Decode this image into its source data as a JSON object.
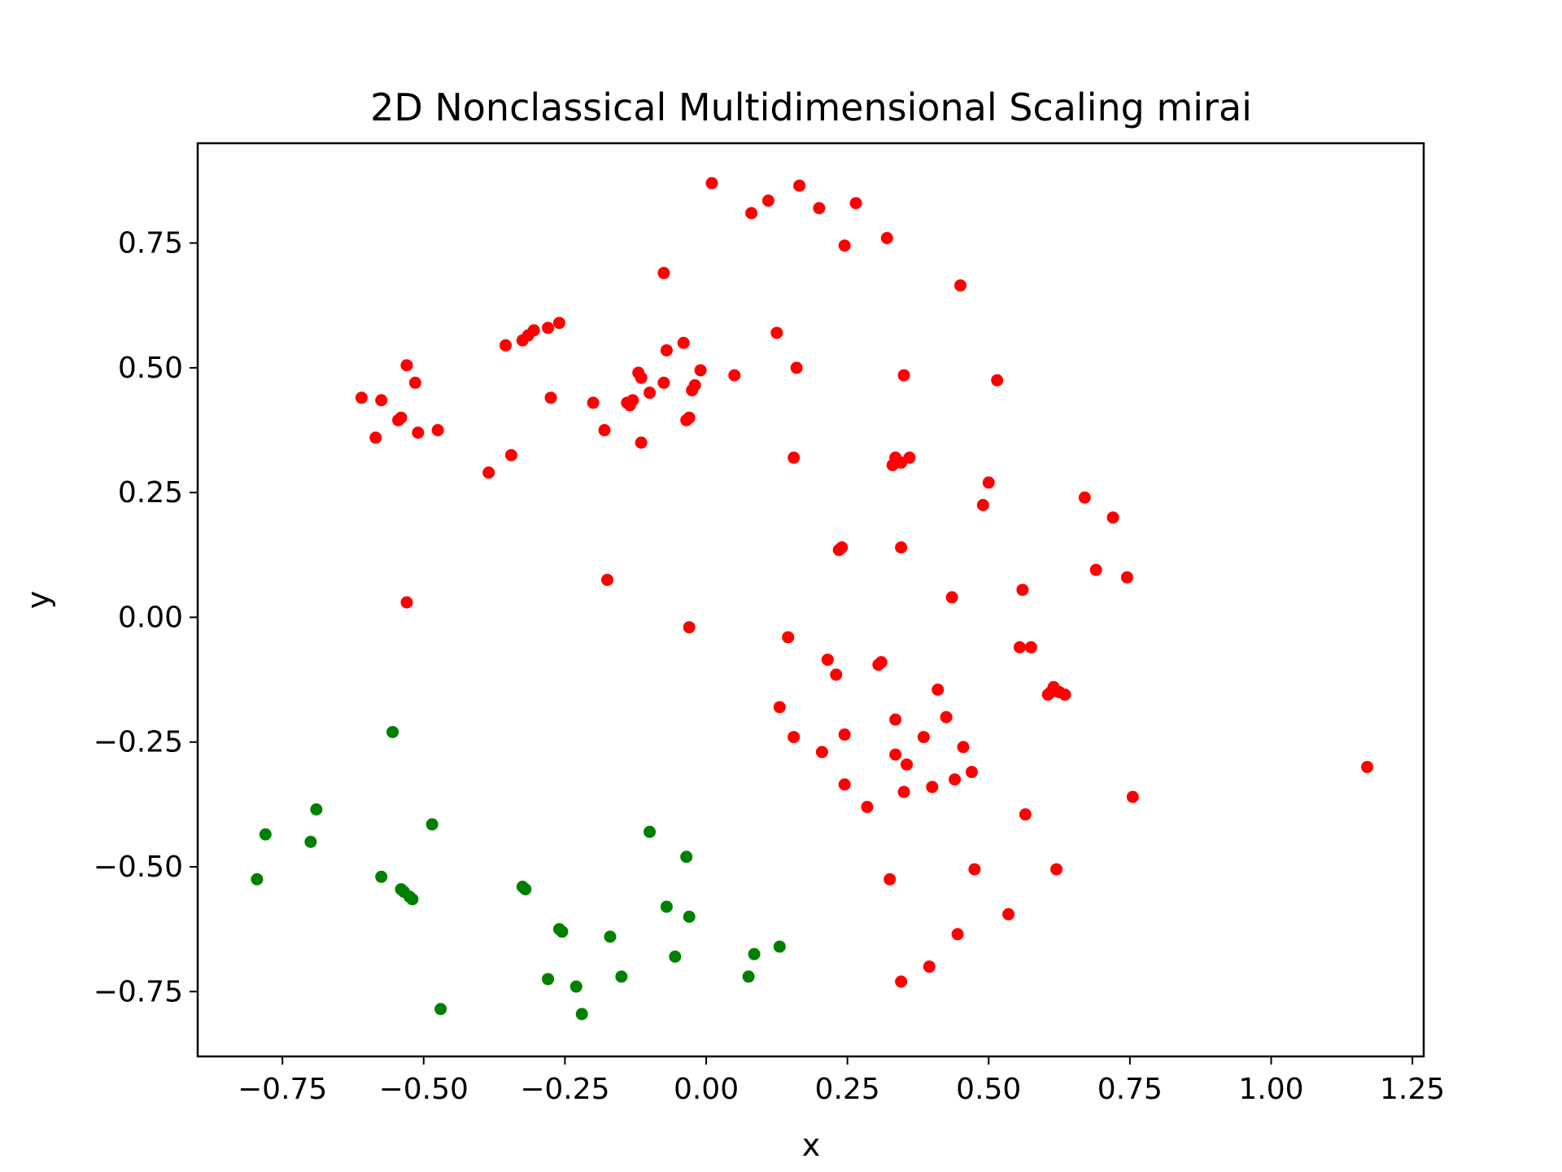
{
  "chart_data": {
    "type": "scatter",
    "title": "2D Nonclassical Multidimensional Scaling mirai",
    "xlabel": "x",
    "ylabel": "y",
    "xlim": [
      -0.9,
      1.27
    ],
    "ylim": [
      -0.88,
      0.95
    ],
    "xticks": [
      -0.75,
      -0.5,
      -0.25,
      0.0,
      0.25,
      0.5,
      0.75,
      1.0,
      1.25
    ],
    "xtick_labels": [
      "−0.75",
      "−0.50",
      "−0.25",
      "0.00",
      "0.25",
      "0.50",
      "0.75",
      "1.00",
      "1.25"
    ],
    "yticks": [
      -0.75,
      -0.5,
      -0.25,
      0.0,
      0.25,
      0.5,
      0.75
    ],
    "ytick_labels": [
      "−0.75",
      "−0.50",
      "−0.25",
      "0.00",
      "0.25",
      "0.50",
      "0.75"
    ],
    "grid": false,
    "series": [
      {
        "color": "#ff0000",
        "points": [
          [
            0.01,
            0.87
          ],
          [
            0.165,
            0.865
          ],
          [
            0.11,
            0.835
          ],
          [
            0.265,
            0.83
          ],
          [
            0.2,
            0.82
          ],
          [
            0.08,
            0.81
          ],
          [
            0.32,
            0.76
          ],
          [
            0.245,
            0.745
          ],
          [
            -0.075,
            0.69
          ],
          [
            0.45,
            0.665
          ],
          [
            -0.26,
            0.59
          ],
          [
            -0.28,
            0.58
          ],
          [
            -0.305,
            0.575
          ],
          [
            -0.315,
            0.565
          ],
          [
            -0.325,
            0.555
          ],
          [
            -0.355,
            0.545
          ],
          [
            0.125,
            0.57
          ],
          [
            -0.04,
            0.55
          ],
          [
            -0.07,
            0.535
          ],
          [
            -0.53,
            0.505
          ],
          [
            0.16,
            0.5
          ],
          [
            -0.01,
            0.495
          ],
          [
            -0.12,
            0.49
          ],
          [
            0.35,
            0.485
          ],
          [
            0.05,
            0.485
          ],
          [
            -0.115,
            0.48
          ],
          [
            0.515,
            0.475
          ],
          [
            -0.515,
            0.47
          ],
          [
            -0.075,
            0.47
          ],
          [
            -0.02,
            0.465
          ],
          [
            -0.025,
            0.455
          ],
          [
            -0.1,
            0.45
          ],
          [
            -0.61,
            0.44
          ],
          [
            -0.575,
            0.435
          ],
          [
            -0.275,
            0.44
          ],
          [
            -0.2,
            0.43
          ],
          [
            -0.13,
            0.435
          ],
          [
            -0.14,
            0.43
          ],
          [
            -0.135,
            0.425
          ],
          [
            -0.54,
            0.4
          ],
          [
            -0.545,
            0.395
          ],
          [
            -0.03,
            0.4
          ],
          [
            -0.035,
            0.395
          ],
          [
            -0.475,
            0.375
          ],
          [
            -0.18,
            0.375
          ],
          [
            -0.51,
            0.37
          ],
          [
            -0.585,
            0.36
          ],
          [
            -0.115,
            0.35
          ],
          [
            -0.345,
            0.325
          ],
          [
            0.335,
            0.32
          ],
          [
            0.36,
            0.32
          ],
          [
            0.155,
            0.32
          ],
          [
            0.345,
            0.31
          ],
          [
            0.33,
            0.305
          ],
          [
            -0.385,
            0.29
          ],
          [
            0.5,
            0.27
          ],
          [
            0.67,
            0.24
          ],
          [
            0.49,
            0.225
          ],
          [
            0.72,
            0.2
          ],
          [
            0.24,
            0.14
          ],
          [
            0.235,
            0.135
          ],
          [
            0.345,
            0.14
          ],
          [
            0.69,
            0.095
          ],
          [
            0.745,
            0.08
          ],
          [
            -0.175,
            0.075
          ],
          [
            0.56,
            0.055
          ],
          [
            0.435,
            0.04
          ],
          [
            -0.53,
            0.03
          ],
          [
            -0.03,
            -0.02
          ],
          [
            0.145,
            -0.04
          ],
          [
            0.555,
            -0.06
          ],
          [
            0.575,
            -0.06
          ],
          [
            0.215,
            -0.085
          ],
          [
            0.31,
            -0.09
          ],
          [
            0.305,
            -0.095
          ],
          [
            0.23,
            -0.115
          ],
          [
            0.41,
            -0.145
          ],
          [
            0.615,
            -0.14
          ],
          [
            0.61,
            -0.15
          ],
          [
            0.625,
            -0.15
          ],
          [
            0.635,
            -0.155
          ],
          [
            0.605,
            -0.155
          ],
          [
            0.13,
            -0.18
          ],
          [
            0.425,
            -0.2
          ],
          [
            0.335,
            -0.205
          ],
          [
            0.245,
            -0.235
          ],
          [
            0.385,
            -0.24
          ],
          [
            0.155,
            -0.24
          ],
          [
            0.455,
            -0.26
          ],
          [
            0.205,
            -0.27
          ],
          [
            0.335,
            -0.275
          ],
          [
            0.355,
            -0.295
          ],
          [
            0.47,
            -0.31
          ],
          [
            0.44,
            -0.325
          ],
          [
            0.245,
            -0.335
          ],
          [
            0.4,
            -0.34
          ],
          [
            0.35,
            -0.35
          ],
          [
            0.285,
            -0.38
          ],
          [
            0.565,
            -0.395
          ],
          [
            0.755,
            -0.36
          ],
          [
            1.17,
            -0.3
          ],
          [
            0.475,
            -0.505
          ],
          [
            0.62,
            -0.505
          ],
          [
            0.325,
            -0.525
          ],
          [
            0.535,
            -0.595
          ],
          [
            0.445,
            -0.635
          ],
          [
            0.395,
            -0.7
          ],
          [
            0.345,
            -0.73
          ]
        ]
      },
      {
        "color": "#008000",
        "points": [
          [
            -0.555,
            -0.23
          ],
          [
            -0.69,
            -0.385
          ],
          [
            -0.485,
            -0.415
          ],
          [
            -0.78,
            -0.435
          ],
          [
            -0.1,
            -0.43
          ],
          [
            -0.7,
            -0.45
          ],
          [
            -0.035,
            -0.48
          ],
          [
            -0.575,
            -0.52
          ],
          [
            -0.795,
            -0.525
          ],
          [
            -0.54,
            -0.545
          ],
          [
            -0.535,
            -0.55
          ],
          [
            -0.525,
            -0.56
          ],
          [
            -0.52,
            -0.565
          ],
          [
            -0.325,
            -0.54
          ],
          [
            -0.32,
            -0.545
          ],
          [
            -0.07,
            -0.58
          ],
          [
            -0.03,
            -0.6
          ],
          [
            -0.26,
            -0.625
          ],
          [
            -0.255,
            -0.63
          ],
          [
            -0.17,
            -0.64
          ],
          [
            0.13,
            -0.66
          ],
          [
            0.085,
            -0.675
          ],
          [
            -0.055,
            -0.68
          ],
          [
            -0.28,
            -0.725
          ],
          [
            0.075,
            -0.72
          ],
          [
            -0.15,
            -0.72
          ],
          [
            -0.23,
            -0.74
          ],
          [
            -0.47,
            -0.785
          ],
          [
            -0.22,
            -0.795
          ]
        ]
      }
    ]
  }
}
